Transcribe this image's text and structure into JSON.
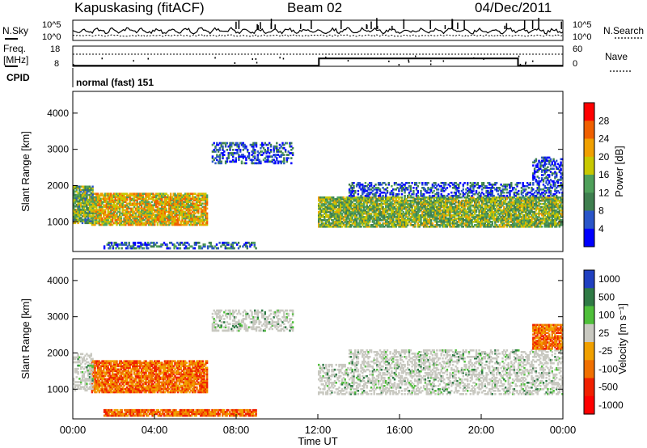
{
  "header": {
    "station": "Kapuskasing (fitACF)",
    "beam": "Beam 02",
    "date": "04/Dec/2011"
  },
  "noise_panel": {
    "left_label": "N.Sky",
    "left_top_tick": "10^5",
    "left_bottom_tick": "10^0",
    "right_label": "N.Search",
    "right_top_tick": "10^5",
    "right_bottom_tick": "10^0"
  },
  "freq_panel": {
    "left_label_1": "Freq.",
    "left_label_2": "[MHz]",
    "left_top_tick": "18",
    "left_bottom_tick": "8",
    "right_label": "Nave",
    "right_top_tick": "60",
    "right_bottom_tick": "0"
  },
  "cpid": {
    "label": "CPID",
    "program": "normal (fast) 151"
  },
  "colors": {
    "power_scale": [
      "#0000ff",
      "#2a55c8",
      "#3f7f4f",
      "#4fa05a",
      "#c8c800",
      "#f0a000",
      "#f06000",
      "#ff0000"
    ],
    "velocity_scale": [
      "#2040c0",
      "#2f7a45",
      "#4fbf3a",
      "#c8c8c0",
      "#f0a000",
      "#f07000",
      "#f02000",
      "#ff0000"
    ]
  },
  "chart_data": [
    {
      "type": "heatmap",
      "panel": "power",
      "ylabel": "Slant Range [km]",
      "xlabel": "",
      "ylim": [
        180,
        4600
      ],
      "xlim": [
        0,
        24
      ],
      "y_ticks": [
        "1000",
        "2000",
        "3000",
        "4000"
      ],
      "colorbar": {
        "label": "Power [dB]",
        "ticks": [
          "4",
          "8",
          "12",
          "16",
          "20",
          "24",
          "28"
        ],
        "range": [
          0,
          32
        ]
      },
      "regions": [
        {
          "t0": 0.9,
          "t1": 6.6,
          "r0": 900,
          "r1": 1800,
          "value": 20
        },
        {
          "t0": 0.0,
          "t1": 1.0,
          "r0": 950,
          "r1": 2000,
          "value": 14
        },
        {
          "t0": 6.8,
          "t1": 10.8,
          "r0": 2600,
          "r1": 3200,
          "value": 6
        },
        {
          "t0": 12.0,
          "t1": 24.0,
          "r0": 850,
          "r1": 1700,
          "value": 15
        },
        {
          "t0": 13.5,
          "t1": 24.0,
          "r0": 1700,
          "r1": 2100,
          "value": 6
        },
        {
          "t0": 22.5,
          "t1": 24.0,
          "r0": 2100,
          "r1": 2800,
          "value": 5
        },
        {
          "t0": 1.5,
          "t1": 9.0,
          "r0": 250,
          "r1": 450,
          "value": 8
        }
      ]
    },
    {
      "type": "heatmap",
      "panel": "velocity",
      "ylabel": "Slant Range [km]",
      "xlabel": "Time UT",
      "ylim": [
        180,
        4600
      ],
      "xlim": [
        0,
        24
      ],
      "y_ticks": [
        "1000",
        "2000",
        "3000",
        "4000"
      ],
      "x_ticks": [
        "00:00",
        "04:00",
        "08:00",
        "12:00",
        "16:00",
        "20:00",
        "00:00"
      ],
      "colorbar": {
        "label": "Velocity [m s⁻¹]",
        "ticks": [
          "1000",
          "500",
          "100",
          "25",
          "-25",
          "-100",
          "-500",
          "-1000"
        ]
      },
      "regions": [
        {
          "t0": 0.9,
          "t1": 6.6,
          "r0": 900,
          "r1": 1800,
          "value": -300
        },
        {
          "t0": 0.0,
          "t1": 1.0,
          "r0": 950,
          "r1": 2000,
          "value": 0
        },
        {
          "t0": 6.8,
          "t1": 10.8,
          "r0": 2600,
          "r1": 3200,
          "value": 0
        },
        {
          "t0": 12.0,
          "t1": 24.0,
          "r0": 850,
          "r1": 1700,
          "value": 0
        },
        {
          "t0": 13.5,
          "t1": 24.0,
          "r0": 1700,
          "r1": 2100,
          "value": 0
        },
        {
          "t0": 22.5,
          "t1": 24.0,
          "r0": 2100,
          "r1": 2800,
          "value": -300
        },
        {
          "t0": 1.5,
          "t1": 9.0,
          "r0": 250,
          "r1": 450,
          "value": -100
        }
      ]
    }
  ],
  "frequency_series": {
    "x": [
      0,
      12.05,
      12.05,
      21.8,
      21.8,
      24
    ],
    "y": [
      8.3,
      8.3,
      11.9,
      11.9,
      8.3,
      8.3
    ]
  }
}
